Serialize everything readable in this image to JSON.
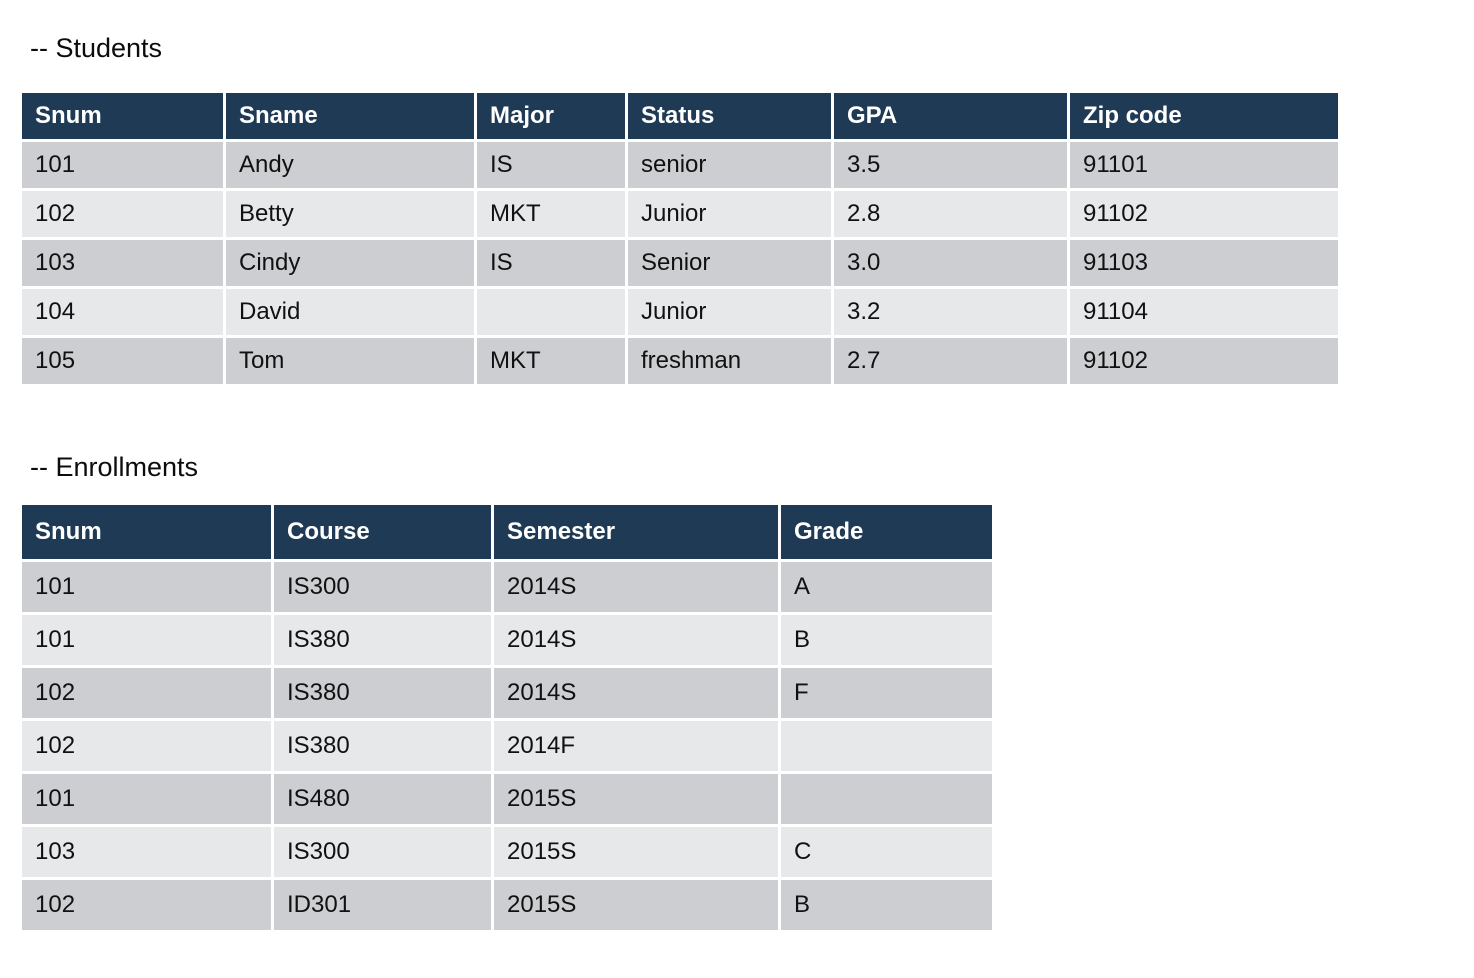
{
  "colors": {
    "header_bg": "#1e3a55",
    "header_text": "#ffffff",
    "row_odd_bg": "#cdced2",
    "row_even_bg": "#e7e8ea",
    "body_text": "#111111",
    "page_bg": "#ffffff"
  },
  "students": {
    "title": "-- Students",
    "columns": [
      "Snum",
      "Sname",
      "Major",
      "Status",
      "GPA",
      "Zip code"
    ],
    "rows": [
      [
        "101",
        "Andy",
        "IS",
        "senior",
        "3.5",
        "91101"
      ],
      [
        "102",
        "Betty",
        "MKT",
        "Junior",
        "2.8",
        "91102"
      ],
      [
        "103",
        "Cindy",
        "IS",
        "Senior",
        "3.0",
        "91103"
      ],
      [
        "104",
        "David",
        "",
        "Junior",
        "3.2",
        "91104"
      ],
      [
        "105",
        "Tom",
        "MKT",
        "freshman",
        "2.7",
        "91102"
      ]
    ]
  },
  "enrollments": {
    "title": "-- Enrollments",
    "columns": [
      "Snum",
      "Course",
      "Semester",
      "Grade"
    ],
    "rows": [
      [
        "101",
        "IS300",
        "2014S",
        "A"
      ],
      [
        "101",
        "IS380",
        "2014S",
        "B"
      ],
      [
        "102",
        "IS380",
        "2014S",
        "F"
      ],
      [
        "102",
        "IS380",
        "2014F",
        ""
      ],
      [
        "101",
        "IS480",
        "2015S",
        ""
      ],
      [
        "103",
        "IS300",
        "2015S",
        "C"
      ],
      [
        "102",
        "ID301",
        "2015S",
        "B"
      ]
    ]
  }
}
